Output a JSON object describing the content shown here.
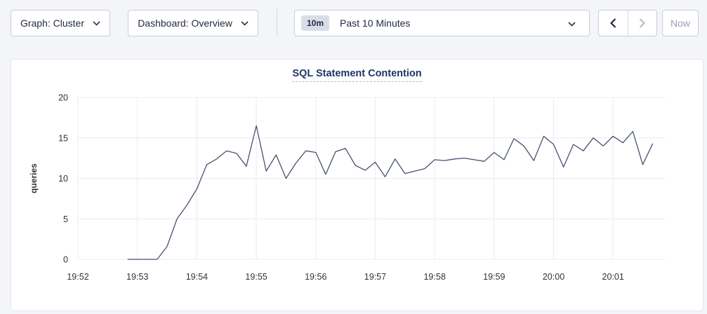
{
  "toolbar": {
    "graph_dropdown": "Graph: Cluster",
    "dashboard_dropdown": "Dashboard: Overview",
    "range_badge": "10m",
    "range_label": "Past 10 Minutes",
    "now_button": "Now"
  },
  "colors": {
    "page_background": "#f4f5f9",
    "card_background": "#ffffff",
    "button_border": "#c9cdd6",
    "button_text": "#1e2a3e",
    "disabled_icon": "#b7bdc8",
    "disabled_text": "#9aa2b1",
    "badge_background": "#dadde8",
    "title_navy": "#1f3566",
    "grid": "#ececef",
    "line": "#46526f",
    "tick_text": "#2f3237"
  },
  "chart_data": {
    "type": "line",
    "title": "SQL Statement Contention",
    "xlabel": "",
    "ylabel": "queries",
    "ylim": [
      0,
      20
    ],
    "y_ticks": [
      0,
      5,
      10,
      15,
      20
    ],
    "x_ticks": [
      "19:52",
      "19:53",
      "19:54",
      "19:55",
      "19:56",
      "19:57",
      "19:58",
      "19:59",
      "20:00",
      "20:01"
    ],
    "x_axis_start": "19:52:00",
    "x_axis_span_seconds": 593,
    "grid": true,
    "legend_position": "none",
    "series": [
      {
        "name": "queries",
        "color": "#46526f",
        "start_time": "19:52:50",
        "end_time": "20:01:40",
        "interval_seconds": 10,
        "values": [
          0,
          0,
          0,
          0,
          1.6,
          5.0,
          6.7,
          8.7,
          11.7,
          12.4,
          13.4,
          13.1,
          11.5,
          16.5,
          10.9,
          12.9,
          10.0,
          11.9,
          13.4,
          13.2,
          10.5,
          13.3,
          13.7,
          11.6,
          11.0,
          12.0,
          10.2,
          12.4,
          10.6,
          10.9,
          11.2,
          12.3,
          12.2,
          12.4,
          12.5,
          12.3,
          12.1,
          13.2,
          12.3,
          14.9,
          14.0,
          12.2,
          15.2,
          14.2,
          11.4,
          14.2,
          13.4,
          15.0,
          14.0,
          15.2,
          14.4,
          15.8,
          11.7,
          14.3
        ]
      }
    ]
  }
}
